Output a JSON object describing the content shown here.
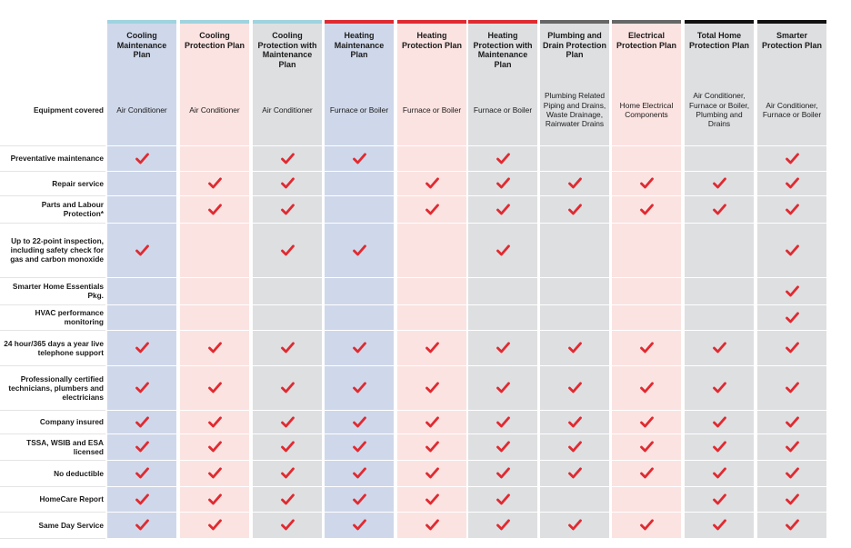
{
  "columns": [
    {
      "label": "Cooling Maintenance Plan",
      "top_color": "#9ed3df",
      "bg_color": "#cfd8ea"
    },
    {
      "label": "Cooling Protection Plan",
      "top_color": "#9ed3df",
      "bg_color": "#fbe3e1"
    },
    {
      "label": "Cooling Protection with Maintenance Plan",
      "top_color": "#9ed3df",
      "bg_color": "#dedfe1"
    },
    {
      "label": "Heating Maintenance Plan",
      "top_color": "#e02a31",
      "bg_color": "#cfd8ea"
    },
    {
      "label": "Heating Protection Plan",
      "top_color": "#e02a31",
      "bg_color": "#fbe3e1"
    },
    {
      "label": "Heating Protection with Maintenance Plan",
      "top_color": "#e02a31",
      "bg_color": "#dedfe1"
    },
    {
      "label": "Plumbing and Drain Protection Plan",
      "top_color": "#666666",
      "bg_color": "#dedfe1"
    },
    {
      "label": "Electrical Protection Plan",
      "top_color": "#666666",
      "bg_color": "#fbe3e1"
    },
    {
      "label": "Total Home Protection Plan",
      "top_color": "#111111",
      "bg_color": "#dedfe1"
    },
    {
      "label": "Smarter Protection Plan",
      "top_color": "#111111",
      "bg_color": "#dedfe1"
    }
  ],
  "equipment_row": {
    "label": "Equipment covered",
    "values": [
      "Air Conditioner",
      "Air Conditioner",
      "Air Conditioner",
      "Furnace or Boiler",
      "Furnace or Boiler",
      "Furnace or Boiler",
      "Plumbing Related Piping and Drains, Waste Drainage, Rainwater Drains",
      "Home Electrical Components",
      "Air Conditioner, Furnace or Boiler, Plumbing and Drains",
      "Air Conditioner, Furnace or Boiler"
    ]
  },
  "feature_rows": [
    {
      "label": "Preventative maintenance",
      "checks": [
        true,
        false,
        true,
        true,
        false,
        true,
        false,
        false,
        false,
        true
      ]
    },
    {
      "label": "Repair service",
      "checks": [
        false,
        true,
        true,
        false,
        true,
        true,
        true,
        true,
        true,
        true
      ]
    },
    {
      "label": "Parts and Labour Protection*",
      "checks": [
        false,
        true,
        true,
        false,
        true,
        true,
        true,
        true,
        true,
        true
      ]
    },
    {
      "label": "Up to 22-point inspection, including safety check for gas and carbon monoxide",
      "checks": [
        true,
        false,
        true,
        true,
        false,
        true,
        false,
        false,
        false,
        true
      ]
    },
    {
      "label": "Smarter Home Essentials Pkg.",
      "checks": [
        false,
        false,
        false,
        false,
        false,
        false,
        false,
        false,
        false,
        true
      ]
    },
    {
      "label": "HVAC performance monitoring",
      "checks": [
        false,
        false,
        false,
        false,
        false,
        false,
        false,
        false,
        false,
        true
      ]
    },
    {
      "label": "24 hour/365 days a year live telephone support",
      "checks": [
        true,
        true,
        true,
        true,
        true,
        true,
        true,
        true,
        true,
        true
      ]
    },
    {
      "label": "Professionally certified technicians, plumbers and electricians",
      "checks": [
        true,
        true,
        true,
        true,
        true,
        true,
        true,
        true,
        true,
        true
      ]
    },
    {
      "label": "Company insured",
      "checks": [
        true,
        true,
        true,
        true,
        true,
        true,
        true,
        true,
        true,
        true
      ]
    },
    {
      "label": "TSSA, WSIB and ESA licensed",
      "checks": [
        true,
        true,
        true,
        true,
        true,
        true,
        true,
        true,
        true,
        true
      ]
    },
    {
      "label": "No deductible",
      "checks": [
        true,
        true,
        true,
        true,
        true,
        true,
        true,
        true,
        true,
        true
      ]
    },
    {
      "label": "HomeCare Report",
      "checks": [
        true,
        true,
        true,
        true,
        true,
        true,
        false,
        false,
        true,
        true
      ]
    },
    {
      "label": "Same Day Service",
      "checks": [
        true,
        true,
        true,
        true,
        true,
        true,
        true,
        true,
        true,
        true
      ]
    }
  ],
  "check_color": "#e02a31"
}
